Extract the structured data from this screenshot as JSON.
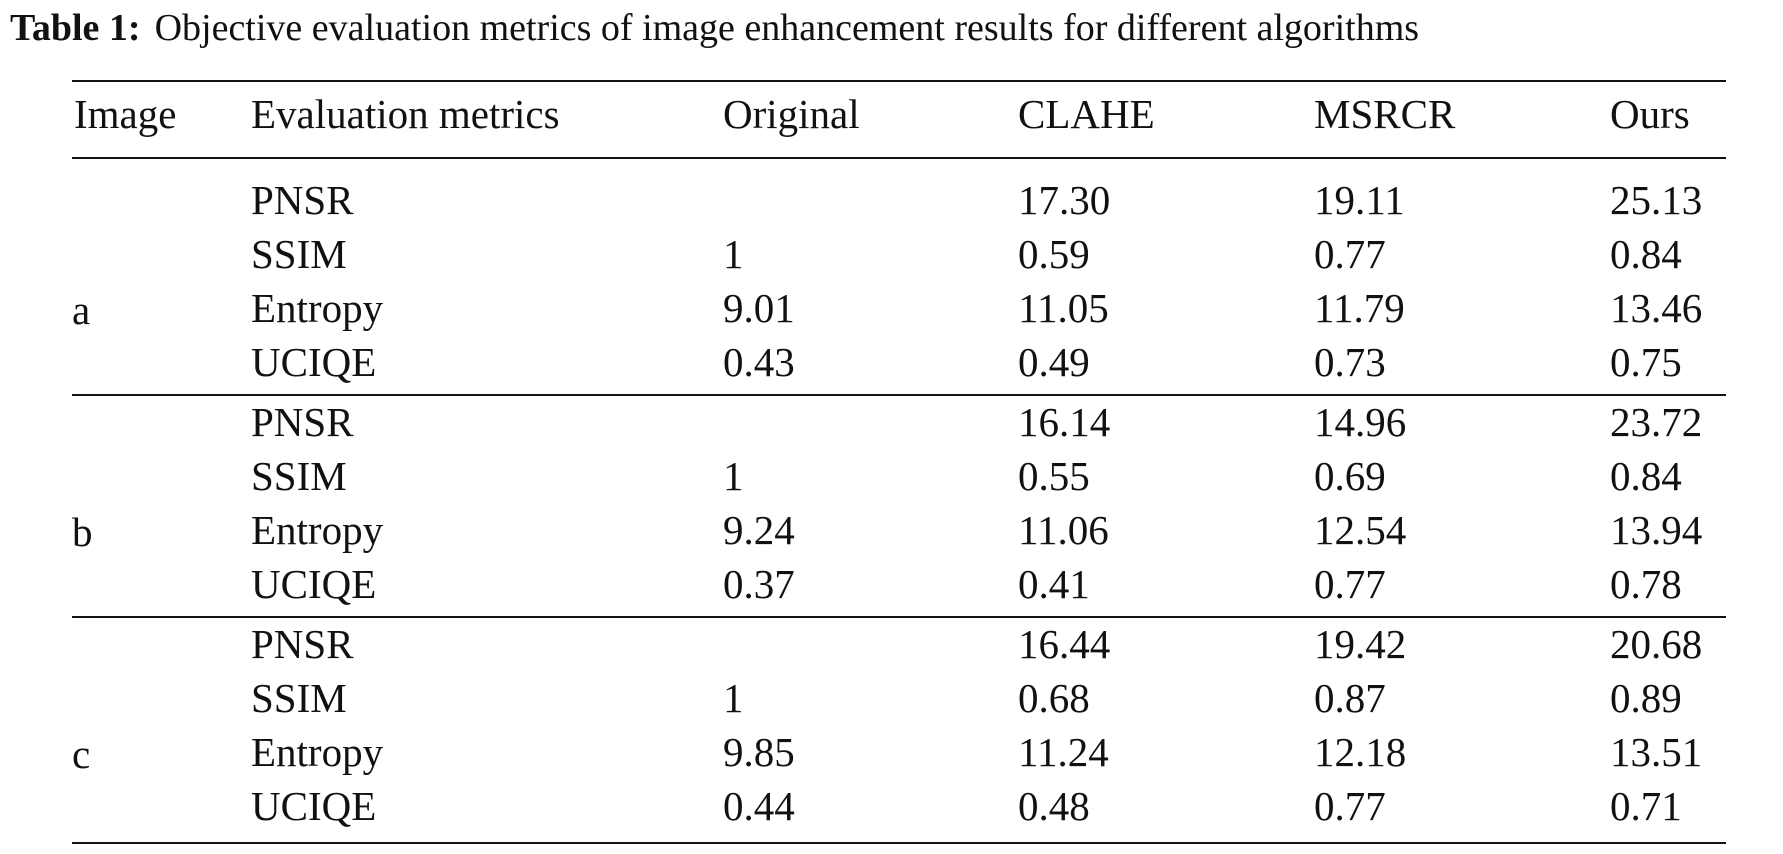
{
  "table": {
    "caption_label": "Table 1:",
    "caption_text": "Objective evaluation metrics of image enhancement results for different algorithms",
    "headers": [
      "Image",
      "Evaluation metrics",
      "Original",
      "CLAHE",
      "MSRCR",
      "Ours"
    ],
    "groups": [
      {
        "image": "a",
        "rows": [
          {
            "metric": "PNSR",
            "original": "",
            "clahe": "17.30",
            "msrcr": "19.11",
            "ours": "25.13"
          },
          {
            "metric": "SSIM",
            "original": "1",
            "clahe": "0.59",
            "msrcr": "0.77",
            "ours": "0.84"
          },
          {
            "metric": "Entropy",
            "original": "9.01",
            "clahe": "11.05",
            "msrcr": "11.79",
            "ours": "13.46"
          },
          {
            "metric": "UCIQE",
            "original": "0.43",
            "clahe": "0.49",
            "msrcr": "0.73",
            "ours": "0.75"
          }
        ]
      },
      {
        "image": "b",
        "rows": [
          {
            "metric": "PNSR",
            "original": "",
            "clahe": "16.14",
            "msrcr": "14.96",
            "ours": "23.72"
          },
          {
            "metric": "SSIM",
            "original": "1",
            "clahe": "0.55",
            "msrcr": "0.69",
            "ours": "0.84"
          },
          {
            "metric": "Entropy",
            "original": "9.24",
            "clahe": "11.06",
            "msrcr": "12.54",
            "ours": "13.94"
          },
          {
            "metric": "UCIQE",
            "original": "0.37",
            "clahe": "0.41",
            "msrcr": "0.77",
            "ours": "0.78"
          }
        ]
      },
      {
        "image": "c",
        "rows": [
          {
            "metric": "PNSR",
            "original": "",
            "clahe": "16.44",
            "msrcr": "19.42",
            "ours": "20.68"
          },
          {
            "metric": "SSIM",
            "original": "1",
            "clahe": "0.68",
            "msrcr": "0.87",
            "ours": "0.89"
          },
          {
            "metric": "Entropy",
            "original": "9.85",
            "clahe": "11.24",
            "msrcr": "12.18",
            "ours": "13.51"
          },
          {
            "metric": "UCIQE",
            "original": "0.44",
            "clahe": "0.48",
            "msrcr": "0.77",
            "ours": "0.71"
          }
        ]
      }
    ]
  }
}
